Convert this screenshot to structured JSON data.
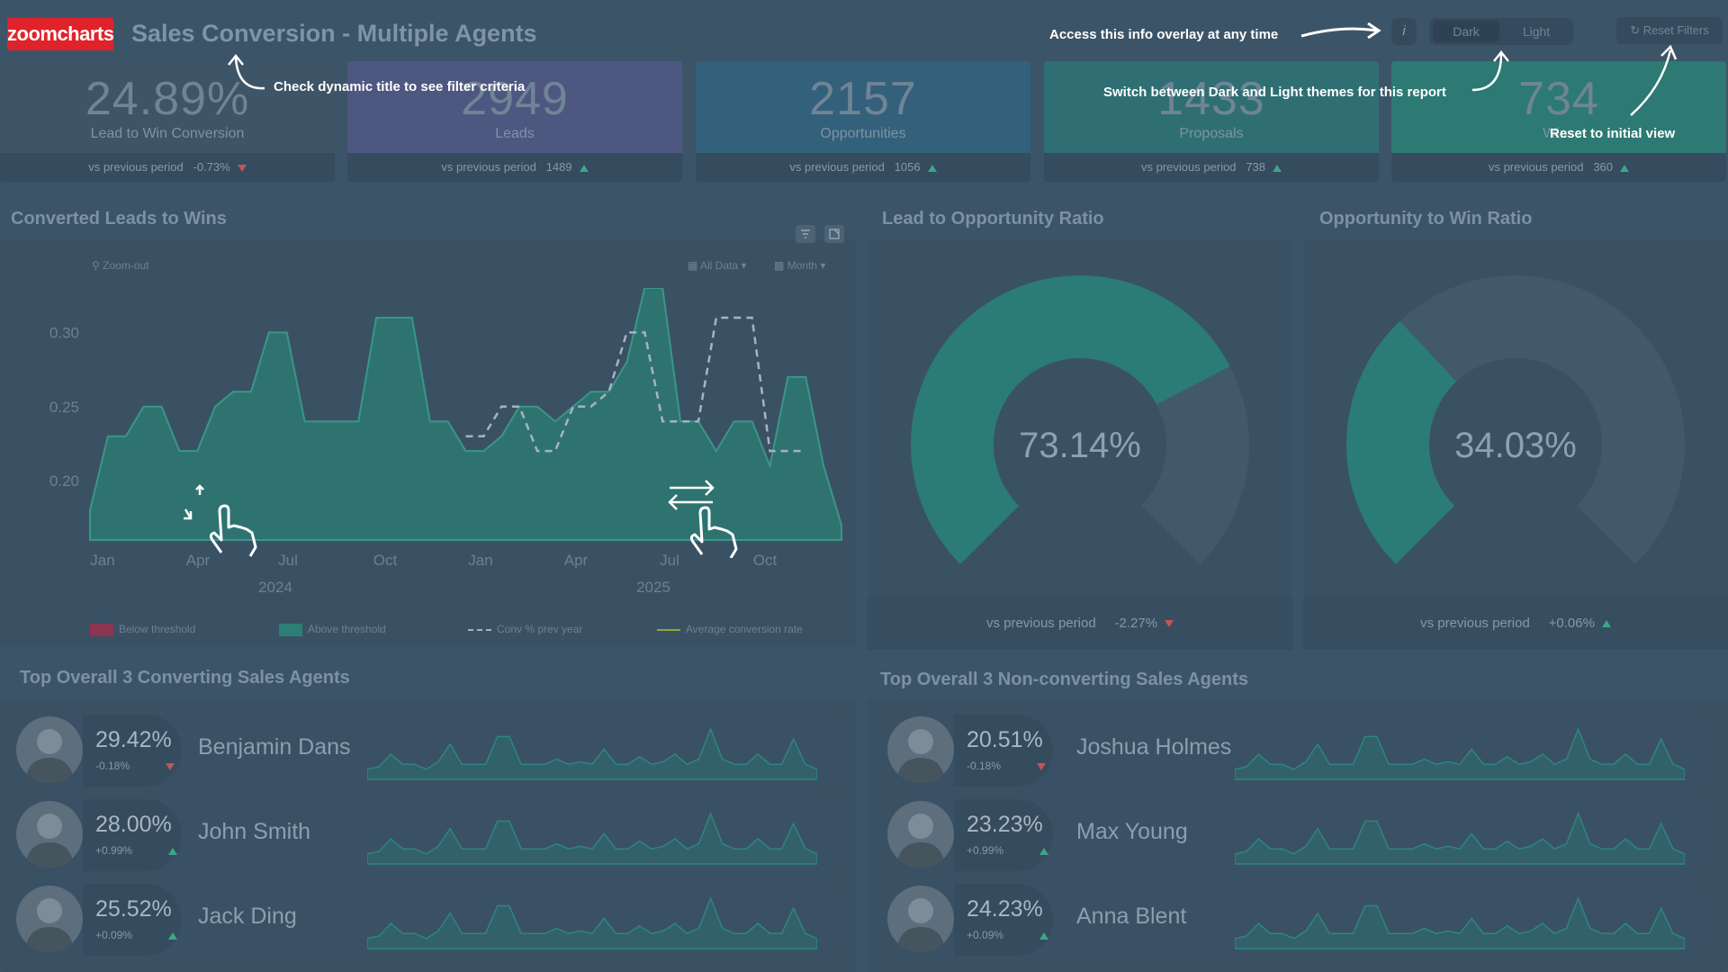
{
  "header": {
    "logo": "zoomcharts",
    "title": "Sales Conversion - Multiple Agents",
    "info_icon": "i",
    "theme_dark": "Dark",
    "theme_light": "Light",
    "reset_filters": "Reset Filters"
  },
  "overlay": {
    "access_info": "Access this info overlay at any time",
    "dynamic_title": "Check dynamic title to see filter criteria",
    "switch_theme": "Switch between Dark and Light themes for this report",
    "reset_view": "Reset to initial view"
  },
  "kpis": [
    {
      "value": "24.89%",
      "label": "Lead to Win Conversion",
      "vs_label": "vs previous period",
      "vs_value": "-0.73%",
      "trend": "down",
      "color": "#3e5467"
    },
    {
      "value": "2949",
      "label": "Leads",
      "vs_label": "vs previous period",
      "vs_value": "1489",
      "trend": "up",
      "color": "#4e5780"
    },
    {
      "value": "2157",
      "label": "Opportunities",
      "vs_label": "vs previous period",
      "vs_value": "1056",
      "trend": "up",
      "color": "#33607a"
    },
    {
      "value": "1433",
      "label": "Proposals",
      "vs_label": "vs previous period",
      "vs_value": "738",
      "trend": "up",
      "color": "#2f6f74"
    },
    {
      "value": "734",
      "label": "Wins",
      "vs_label": "vs previous period",
      "vs_value": "360",
      "trend": "up",
      "color": "#2c7a73"
    }
  ],
  "converted": {
    "title": "Converted Leads to Wins",
    "zoom_out": "Zoom-out",
    "all_data": "All Data",
    "month": "Month",
    "legend": [
      "Below threshold",
      "Above threshold",
      "Conv % prev year",
      "Average conversion rate"
    ],
    "colors": {
      "below": "#b0344c",
      "above": "#2c7f75",
      "prev_year": "#a5b4c0",
      "average": "#8fa63e"
    }
  },
  "chart_data": {
    "type": "area",
    "title": "Converted Leads to Wins",
    "xlabel": "",
    "ylabel": "",
    "ylim": [
      0.16,
      0.33
    ],
    "yticks": [
      "0.30",
      "0.25",
      "0.20"
    ],
    "x_tick_labels": [
      "Jan",
      "Apr",
      "Jul",
      "Oct",
      "Jan",
      "Apr",
      "Jul",
      "Oct"
    ],
    "year_labels": [
      "2024",
      "2025"
    ],
    "series": [
      {
        "values": [
          0.18,
          0.23,
          0.23,
          0.25,
          0.25,
          0.22,
          0.22,
          0.25,
          0.26,
          0.26,
          0.3,
          0.3,
          0.24,
          0.24,
          0.24,
          0.24,
          0.31,
          0.31,
          0.31,
          0.24,
          0.24,
          0.22,
          0.22,
          0.23,
          0.25,
          0.25,
          0.24,
          0.25,
          0.26,
          0.26,
          0.28,
          0.33,
          0.33,
          0.24,
          0.24,
          0.22,
          0.24,
          0.24,
          0.21,
          0.27,
          0.27,
          0.21,
          0.17
        ]
      },
      {
        "name": "Conv % prev year",
        "values": [
          null,
          null,
          null,
          null,
          null,
          null,
          null,
          null,
          null,
          null,
          null,
          null,
          null,
          null,
          null,
          null,
          null,
          null,
          null,
          null,
          null,
          0.23,
          0.23,
          0.25,
          0.25,
          0.22,
          0.22,
          0.25,
          0.25,
          0.26,
          0.3,
          0.3,
          0.24,
          0.24,
          0.24,
          0.31,
          0.31,
          0.31,
          0.22,
          0.22,
          0.22
        ]
      }
    ]
  },
  "lead_opp": {
    "title": "Lead to Opportunity Ratio",
    "value": "73.14%",
    "ratio": 0.7314,
    "vs_label": "vs previous period",
    "vs_value": "-2.27%",
    "trend": "down"
  },
  "opp_win": {
    "title": "Opportunity to Win Ratio",
    "value": "34.03%",
    "ratio": 0.3403,
    "vs_label": "vs previous period",
    "vs_value": "+0.06%",
    "trend": "up"
  },
  "top_converting": {
    "title": "Top Overall 3 Converting Sales Agents",
    "agents": [
      {
        "name": "Benjamin Dans",
        "pct": "29.42%",
        "delta": "-0.18%",
        "trend": "down"
      },
      {
        "name": "John Smith",
        "pct": "28.00%",
        "delta": "+0.99%",
        "trend": "up"
      },
      {
        "name": "Jack Ding",
        "pct": "25.52%",
        "delta": "+0.09%",
        "trend": "up"
      }
    ]
  },
  "top_nonconverting": {
    "title": "Top Overall 3 Non-converting Sales Agents",
    "agents": [
      {
        "name": "Joshua Holmes",
        "pct": "20.51%",
        "delta": "-0.18%",
        "trend": "down"
      },
      {
        "name": "Max Young",
        "pct": "23.23%",
        "delta": "+0.99%",
        "trend": "up"
      },
      {
        "name": "Anna Blent",
        "pct": "24.23%",
        "delta": "+0.09%",
        "trend": "up"
      }
    ]
  }
}
